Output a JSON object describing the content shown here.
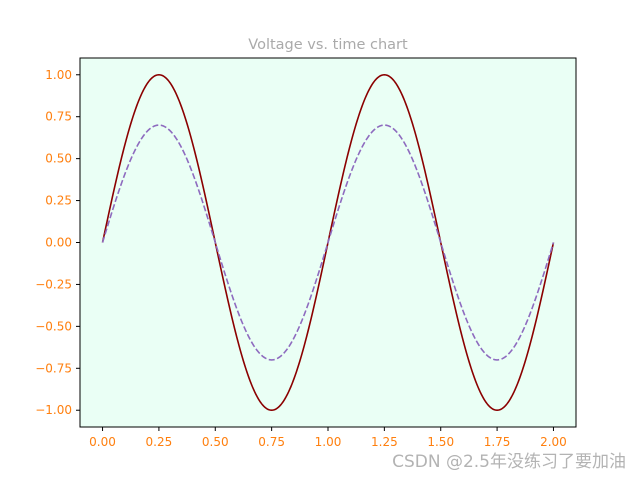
{
  "chart_data": {
    "type": "line",
    "title": "Voltage vs. time chart",
    "xlabel": "",
    "ylabel": "",
    "xlim": [
      -0.1,
      2.1
    ],
    "ylim": [
      -1.1,
      1.1
    ],
    "x_ticks": [
      0.0,
      0.25,
      0.5,
      0.75,
      1.0,
      1.25,
      1.5,
      1.75,
      2.0
    ],
    "x_tick_labels": [
      "0.00",
      "0.25",
      "0.50",
      "0.75",
      "1.00",
      "1.25",
      "1.50",
      "1.75",
      "2.00"
    ],
    "y_ticks": [
      1.0,
      0.75,
      0.5,
      0.25,
      0.0,
      -0.25,
      -0.5,
      -0.75,
      -1.0
    ],
    "y_tick_labels": [
      "1.00",
      "0.75",
      "0.50",
      "0.25",
      "0.00",
      "−0.25",
      "−0.50",
      "−0.75",
      "−1.00"
    ],
    "grid": false,
    "legend": "none",
    "series": [
      {
        "x": [
          0,
          0.125,
          0.25,
          0.375,
          0.5,
          0.625,
          0.75,
          0.875,
          1.0,
          1.125,
          1.25,
          1.375,
          1.5,
          1.625,
          1.75,
          1.875,
          2.0
        ],
        "y": [
          0,
          0.707,
          1.0,
          0.707,
          0,
          -0.707,
          -1.0,
          -0.707,
          0,
          0.707,
          1.0,
          0.707,
          0,
          -0.707,
          -1.0,
          -0.707,
          0
        ],
        "color": "#8b0000",
        "style": "solid"
      },
      {
        "x": [
          0,
          0.125,
          0.25,
          0.375,
          0.5,
          0.625,
          0.75,
          0.875,
          1.0,
          1.125,
          1.25,
          1.375,
          1.5,
          1.625,
          1.75,
          1.875,
          2.0
        ],
        "y": [
          0,
          0.495,
          0.7,
          0.495,
          0,
          -0.495,
          -0.7,
          -0.495,
          0,
          0.495,
          0.7,
          0.495,
          0,
          -0.495,
          -0.7,
          -0.495,
          0
        ],
        "color": "#8e6bbf",
        "style": "dashed"
      }
    ],
    "colors": {
      "plot_background": "#eafff5",
      "tick_labels": "#ff7f0e",
      "title": "#aaaaaa",
      "axes_frame": "#000000"
    }
  },
  "watermark": "CSDN @2.5年没练习了要加油"
}
